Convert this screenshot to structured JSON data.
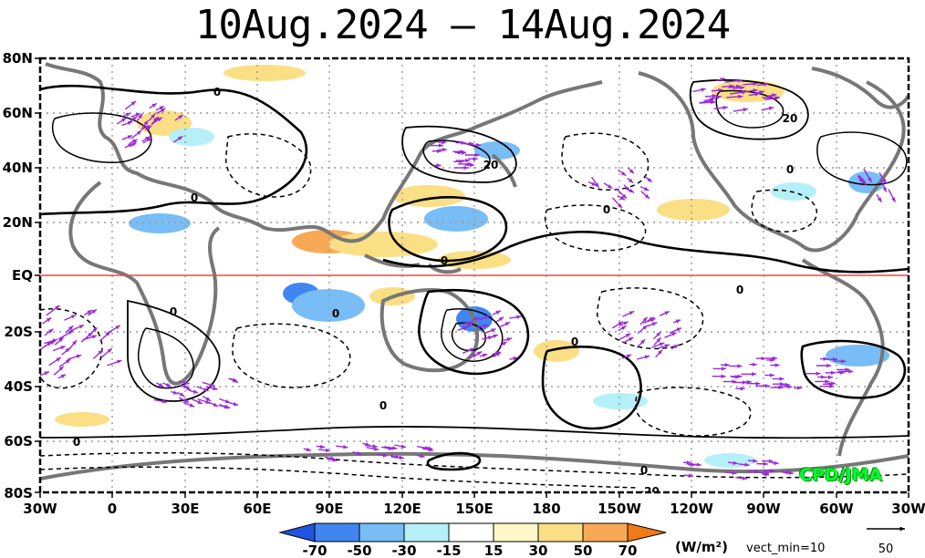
{
  "title": "10Aug.2024 – 14Aug.2024",
  "credit": "CPD/JMA",
  "map": {
    "lat_labels": [
      "80N",
      "60N",
      "40N",
      "20N",
      "EQ",
      "20S",
      "40S",
      "60S",
      "80S"
    ],
    "lon_labels": [
      "30W",
      "0",
      "30E",
      "60E",
      "90E",
      "120E",
      "150E",
      "180",
      "150W",
      "120W",
      "90W",
      "60W",
      "30W"
    ],
    "contour_labels": [
      "0",
      "0",
      "0",
      "0",
      "20",
      "20",
      "0",
      "0",
      "0",
      "0",
      "0",
      "0",
      "0",
      "-20",
      "0"
    ],
    "equator_color": "#ff4040",
    "land_color": "#777777",
    "vector_color": "#9a2bd9"
  },
  "colorbar": {
    "ticks": [
      "-70",
      "-50",
      "-30",
      "-15",
      "15",
      "30",
      "50",
      "70"
    ],
    "colors": [
      "#1f55e0",
      "#3f86f0",
      "#78bdf5",
      "#b5f0f8",
      "#fff8c8",
      "#fbdf85",
      "#f7a955",
      "#f07a18"
    ],
    "unit": "(W/m²)",
    "vect_min": "vect_min=10"
  },
  "reference_vector": {
    "value": "50"
  }
}
